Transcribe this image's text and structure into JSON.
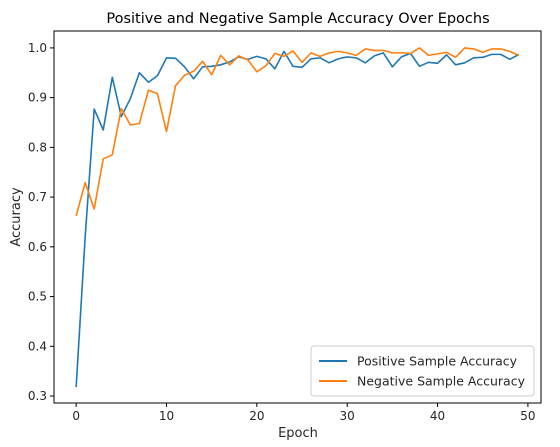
{
  "chart_data": {
    "type": "line",
    "title": "Positive and Negative Sample Accuracy Over Epochs",
    "xlabel": "Epoch",
    "ylabel": "Accuracy",
    "xlim": [
      -2.45,
      51.45
    ],
    "ylim": [
      0.286,
      1.034
    ],
    "xticks": [
      0,
      10,
      20,
      30,
      40,
      50
    ],
    "yticks": [
      0.3,
      0.4,
      0.5,
      0.6,
      0.7,
      0.8,
      0.9,
      1.0
    ],
    "ytick_labels": [
      "0.3",
      "0.4",
      "0.5",
      "0.6",
      "0.7",
      "0.8",
      "0.9",
      "1.0"
    ],
    "grid": false,
    "legend_position": "lower-right",
    "x": [
      0,
      1,
      2,
      3,
      4,
      5,
      6,
      7,
      8,
      9,
      10,
      11,
      12,
      13,
      14,
      15,
      16,
      17,
      18,
      19,
      20,
      21,
      22,
      23,
      24,
      25,
      26,
      27,
      28,
      29,
      30,
      31,
      32,
      33,
      34,
      35,
      36,
      37,
      38,
      39,
      40,
      41,
      42,
      43,
      44,
      45,
      46,
      47,
      48,
      49
    ],
    "series": [
      {
        "name": "Positive Sample Accuracy",
        "color": "#1f77b4",
        "values": [
          0.318,
          0.62,
          0.877,
          0.835,
          0.941,
          0.862,
          0.898,
          0.95,
          0.931,
          0.944,
          0.98,
          0.979,
          0.962,
          0.938,
          0.962,
          0.963,
          0.966,
          0.972,
          0.982,
          0.977,
          0.983,
          0.978,
          0.958,
          0.993,
          0.963,
          0.961,
          0.978,
          0.98,
          0.97,
          0.978,
          0.982,
          0.98,
          0.97,
          0.984,
          0.99,
          0.962,
          0.982,
          0.989,
          0.963,
          0.971,
          0.969,
          0.986,
          0.966,
          0.97,
          0.98,
          0.981,
          0.987,
          0.987,
          0.977,
          0.987
        ]
      },
      {
        "name": "Negative Sample Accuracy",
        "color": "#ff7f0e",
        "values": [
          0.662,
          0.729,
          0.676,
          0.777,
          0.785,
          0.878,
          0.845,
          0.848,
          0.915,
          0.908,
          0.832,
          0.924,
          0.945,
          0.953,
          0.973,
          0.946,
          0.985,
          0.966,
          0.984,
          0.976,
          0.952,
          0.964,
          0.989,
          0.983,
          0.994,
          0.971,
          0.99,
          0.983,
          0.99,
          0.993,
          0.99,
          0.985,
          0.998,
          0.995,
          0.995,
          0.99,
          0.99,
          0.989,
          1.0,
          0.985,
          0.988,
          0.991,
          0.981,
          1.0,
          0.998,
          0.991,
          0.998,
          0.998,
          0.993,
          0.985
        ]
      }
    ]
  }
}
